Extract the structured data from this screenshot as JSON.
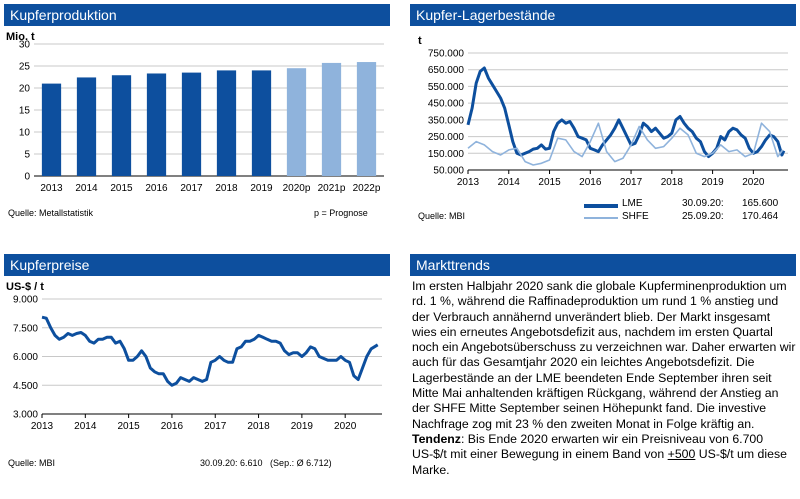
{
  "panels": {
    "production": {
      "title": "Kupferproduktion",
      "unit": "Mio. t",
      "source": "Quelle: Metallstatistik",
      "note": "p = Prognose"
    },
    "stocks": {
      "title": "Kupfer-Lagerbestände",
      "unit": "t",
      "source": "Quelle: MBI",
      "legend": [
        {
          "name": "LME",
          "date": "30.09.20:",
          "value": "165.600",
          "color": "#0d4f9e"
        },
        {
          "name": "SHFE",
          "date": "25.09.20:",
          "value": "170.464",
          "color": "#8fb3dc"
        }
      ]
    },
    "prices": {
      "title": "Kupferpreise",
      "unit": "US-$ / t",
      "source": "Quelle: MBI",
      "note": "30.09.20: 6.610   (Sep.: Ø 6.712)"
    },
    "trends": {
      "title": "Markttrends",
      "body": "Im ersten Halbjahr 2020 sank die globale Kupferminenproduktion um rd. 1 %, während die Raffinadeproduktion um rund 1 % anstieg und der Verbrauch annähernd unverändert blieb. Der Markt insgesamt wies ein erneutes Angebotsdefizit aus, nachdem im ersten Quartal noch ein Angebotsüberschuss zu verzeichnen war. Daher erwarten wir auch für das Gesamtjahr 2020 ein leichtes Angebotsdefizit. Die Lagerbestände an der LME beendeten Ende September ihren seit Mitte Mai anhaltenden kräftigen Rückgang, während der Anstieg an der SHFE Mitte September seinen Höhepunkt fand. Die investive Nachfrage zog mit 23 % den zweiten Monat in Folge kräftig an.",
      "tendency_label": "Tendenz",
      "tendency_text": ": Bis Ende 2020 erwarten wir ein Preisniveau von 6.700 US-$/t mit einer Bewegung in einem Band von ",
      "band_value": "+500",
      "tendency_end": " US-$/t um diese Marke."
    }
  },
  "chart_data": [
    {
      "type": "bar",
      "title": "Kupferproduktion",
      "ylabel": "Mio. t",
      "categories": [
        "2013",
        "2014",
        "2015",
        "2016",
        "2017",
        "2018",
        "2019",
        "2020p",
        "2021p",
        "2022p"
      ],
      "values": [
        21.0,
        22.4,
        22.9,
        23.3,
        23.5,
        24.0,
        24.0,
        24.5,
        25.7,
        25.9
      ],
      "forecast": [
        false,
        false,
        false,
        false,
        false,
        false,
        false,
        true,
        true,
        true
      ],
      "colors": {
        "actual": "#0d4f9e",
        "forecast": "#8fb3dc"
      },
      "ylim": [
        0,
        30
      ],
      "yticks": [
        "0",
        "5",
        "10",
        "15",
        "20",
        "25",
        "30"
      ],
      "grid": true
    },
    {
      "type": "line",
      "title": "Kupfer-Lagerbestände",
      "ylabel": "t",
      "ylim": [
        50000,
        750000
      ],
      "yticks": [
        "50.000",
        "150.000",
        "250.000",
        "350.000",
        "450.000",
        "550.000",
        "650.000",
        "750.000"
      ],
      "xticks": [
        "2013",
        "2014",
        "2015",
        "2016",
        "2017",
        "2018",
        "2019",
        "2020"
      ],
      "xrange": [
        2013.0,
        2020.85
      ],
      "grid": true,
      "series": [
        {
          "name": "LME",
          "color": "#0d4f9e",
          "x": [
            2013.0,
            2013.1,
            2013.2,
            2013.3,
            2013.4,
            2013.5,
            2013.6,
            2013.7,
            2013.8,
            2013.9,
            2014.0,
            2014.1,
            2014.2,
            2014.3,
            2014.4,
            2014.5,
            2014.6,
            2014.7,
            2014.8,
            2014.9,
            2015.0,
            2015.1,
            2015.2,
            2015.3,
            2015.4,
            2015.5,
            2015.6,
            2015.7,
            2015.8,
            2015.9,
            2016.0,
            2016.1,
            2016.2,
            2016.3,
            2016.4,
            2016.5,
            2016.6,
            2016.7,
            2016.8,
            2016.9,
            2017.0,
            2017.1,
            2017.2,
            2017.3,
            2017.4,
            2017.5,
            2017.6,
            2017.7,
            2017.8,
            2017.9,
            2018.0,
            2018.1,
            2018.2,
            2018.3,
            2018.4,
            2018.5,
            2018.6,
            2018.7,
            2018.8,
            2018.9,
            2019.0,
            2019.1,
            2019.2,
            2019.3,
            2019.4,
            2019.5,
            2019.6,
            2019.7,
            2019.8,
            2019.9,
            2020.0,
            2020.1,
            2020.2,
            2020.3,
            2020.4,
            2020.5,
            2020.6,
            2020.7,
            2020.75
          ],
          "y": [
            320000,
            420000,
            570000,
            640000,
            660000,
            600000,
            560000,
            520000,
            480000,
            420000,
            320000,
            220000,
            150000,
            140000,
            150000,
            160000,
            175000,
            180000,
            200000,
            175000,
            180000,
            280000,
            330000,
            350000,
            330000,
            340000,
            300000,
            250000,
            240000,
            230000,
            180000,
            170000,
            160000,
            200000,
            230000,
            260000,
            300000,
            350000,
            300000,
            250000,
            200000,
            210000,
            260000,
            330000,
            310000,
            280000,
            300000,
            270000,
            240000,
            250000,
            270000,
            350000,
            370000,
            330000,
            300000,
            280000,
            240000,
            220000,
            160000,
            130000,
            150000,
            180000,
            250000,
            230000,
            280000,
            300000,
            290000,
            260000,
            240000,
            180000,
            150000,
            160000,
            190000,
            230000,
            260000,
            250000,
            220000,
            140000,
            165600
          ]
        },
        {
          "name": "SHFE",
          "color": "#8fb3dc",
          "x": [
            2013.0,
            2013.2,
            2013.4,
            2013.6,
            2013.8,
            2014.0,
            2014.2,
            2014.4,
            2014.6,
            2014.8,
            2015.0,
            2015.2,
            2015.4,
            2015.6,
            2015.8,
            2016.0,
            2016.2,
            2016.4,
            2016.6,
            2016.8,
            2017.0,
            2017.2,
            2017.4,
            2017.6,
            2017.8,
            2018.0,
            2018.2,
            2018.4,
            2018.6,
            2018.8,
            2019.0,
            2019.2,
            2019.4,
            2019.6,
            2019.8,
            2020.0,
            2020.2,
            2020.4,
            2020.6,
            2020.72
          ],
          "y": [
            180000,
            220000,
            200000,
            160000,
            140000,
            170000,
            180000,
            100000,
            80000,
            90000,
            110000,
            240000,
            230000,
            160000,
            130000,
            220000,
            330000,
            160000,
            100000,
            120000,
            200000,
            310000,
            230000,
            180000,
            190000,
            240000,
            300000,
            260000,
            150000,
            130000,
            150000,
            200000,
            160000,
            170000,
            130000,
            150000,
            330000,
            280000,
            130000,
            170464
          ]
        }
      ]
    },
    {
      "type": "line",
      "title": "Kupferpreise",
      "ylabel": "US-$ / t",
      "ylim": [
        3000,
        9000
      ],
      "yticks": [
        "3.000",
        "4.500",
        "6.000",
        "7.500",
        "9.000"
      ],
      "xticks": [
        "2013",
        "2014",
        "2015",
        "2016",
        "2017",
        "2018",
        "2019",
        "2020"
      ],
      "xrange": [
        2013.0,
        2020.85
      ],
      "grid": true,
      "series": [
        {
          "name": "Kupferpreis",
          "color": "#0d4f9e",
          "x": [
            2013.0,
            2013.1,
            2013.2,
            2013.3,
            2013.4,
            2013.5,
            2013.6,
            2013.7,
            2013.8,
            2013.9,
            2014.0,
            2014.1,
            2014.2,
            2014.3,
            2014.4,
            2014.5,
            2014.6,
            2014.7,
            2014.8,
            2014.9,
            2015.0,
            2015.1,
            2015.2,
            2015.3,
            2015.4,
            2015.5,
            2015.6,
            2015.7,
            2015.8,
            2015.9,
            2016.0,
            2016.1,
            2016.2,
            2016.3,
            2016.4,
            2016.5,
            2016.6,
            2016.7,
            2016.8,
            2016.9,
            2017.0,
            2017.1,
            2017.2,
            2017.3,
            2017.4,
            2017.5,
            2017.6,
            2017.7,
            2017.8,
            2017.9,
            2018.0,
            2018.1,
            2018.2,
            2018.3,
            2018.4,
            2018.5,
            2018.6,
            2018.7,
            2018.8,
            2018.9,
            2019.0,
            2019.1,
            2019.2,
            2019.3,
            2019.4,
            2019.5,
            2019.6,
            2019.7,
            2019.8,
            2019.9,
            2020.0,
            2020.1,
            2020.2,
            2020.3,
            2020.4,
            2020.5,
            2020.6,
            2020.75
          ],
          "y": [
            8050,
            8000,
            7500,
            7100,
            6900,
            7000,
            7200,
            7100,
            7200,
            7250,
            7100,
            6800,
            6700,
            6900,
            6900,
            7000,
            7000,
            6700,
            6800,
            6400,
            5800,
            5800,
            6000,
            6300,
            6000,
            5400,
            5200,
            5100,
            5100,
            4700,
            4500,
            4600,
            4900,
            4800,
            4700,
            4900,
            4800,
            4700,
            4800,
            5700,
            5800,
            6000,
            5800,
            5700,
            5700,
            6400,
            6500,
            6800,
            6800,
            6900,
            7100,
            7000,
            6900,
            6800,
            6800,
            6700,
            6300,
            6100,
            6200,
            6200,
            6000,
            6200,
            6500,
            6400,
            6000,
            5900,
            5800,
            5800,
            5800,
            6000,
            5800,
            5700,
            5000,
            4800,
            5400,
            6000,
            6400,
            6610
          ]
        }
      ]
    }
  ]
}
